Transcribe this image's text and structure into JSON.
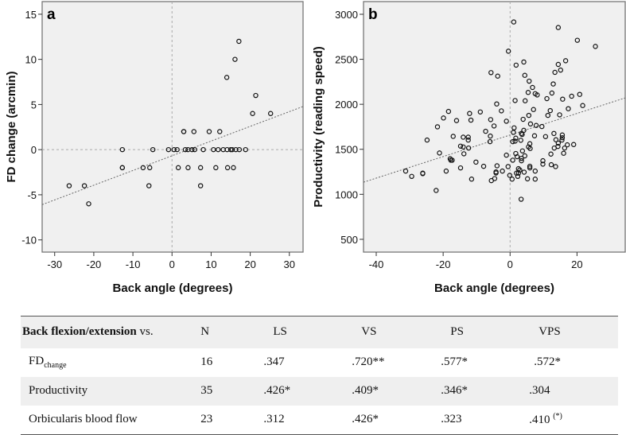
{
  "chart_data": [
    {
      "type": "scatter",
      "panel_label": "a",
      "xlabel": "Back angle (degrees)",
      "ylabel": "FD change (arcmin)",
      "xlim": [
        -33.2,
        33.5
      ],
      "ylim": [
        -11.35,
        16.4
      ],
      "xticks": [
        -30,
        -20,
        -10,
        0,
        10,
        20,
        30
      ],
      "yticks": [
        15,
        10,
        5,
        0,
        -5,
        -10
      ],
      "reference_lines": {
        "x": 0,
        "y": 0
      },
      "fit_line": {
        "slope": 0.163,
        "intercept": -0.68
      },
      "grid": false,
      "points": [
        [
          -26.3,
          -4
        ],
        [
          -22.4,
          -4
        ],
        [
          -21.3,
          -6
        ],
        [
          -12.7,
          0
        ],
        [
          -12.7,
          -2
        ],
        [
          -12.7,
          -2
        ],
        [
          -7.4,
          -2
        ],
        [
          -5.7,
          -2
        ],
        [
          -5.9,
          -4
        ],
        [
          -4.9,
          0
        ],
        [
          -0.9,
          0
        ],
        [
          0.5,
          0
        ],
        [
          1.3,
          0
        ],
        [
          1.6,
          -2
        ],
        [
          3.0,
          2
        ],
        [
          3.0,
          2
        ],
        [
          3.4,
          0
        ],
        [
          4.1,
          0
        ],
        [
          4.1,
          -2
        ],
        [
          5.1,
          0
        ],
        [
          5.6,
          2
        ],
        [
          5.8,
          0
        ],
        [
          7.3,
          -2
        ],
        [
          7.3,
          -4
        ],
        [
          8.0,
          0
        ],
        [
          9.5,
          2
        ],
        [
          10.6,
          0
        ],
        [
          11.2,
          -2
        ],
        [
          11.8,
          0
        ],
        [
          12.2,
          2
        ],
        [
          13.1,
          0
        ],
        [
          14.1,
          0
        ],
        [
          14.2,
          -2
        ],
        [
          14.0,
          8
        ],
        [
          15.0,
          0
        ],
        [
          15.4,
          0
        ],
        [
          15.7,
          -2
        ],
        [
          16.1,
          10
        ],
        [
          16.3,
          0
        ],
        [
          17.2,
          0
        ],
        [
          17.1,
          12
        ],
        [
          18.8,
          0
        ],
        [
          20.6,
          4
        ],
        [
          21.4,
          6
        ],
        [
          25.2,
          4
        ]
      ]
    },
    {
      "type": "scatter",
      "panel_label": "b",
      "xlabel": "Back angle (degrees)",
      "ylabel": "Productivity (reading speed)",
      "xlim": [
        -43.8,
        34.4
      ],
      "ylim": [
        358,
        3141
      ],
      "xticks": [
        -40,
        -20,
        0,
        20
      ],
      "yticks": [
        3000,
        2500,
        2000,
        1500,
        1000,
        500
      ],
      "reference_lines": {
        "x": 0
      },
      "fit_line": {
        "slope": 11.98,
        "intercept": 1659
      },
      "grid": false,
      "points": [
        [
          -31.2,
          1258
        ],
        [
          -29.4,
          1199
        ],
        [
          -26.1,
          1235
        ],
        [
          -26.1,
          1230
        ],
        [
          -24.8,
          1603
        ],
        [
          -22.1,
          1043
        ],
        [
          -21.7,
          1750
        ],
        [
          -21.1,
          1459
        ],
        [
          -19.9,
          1848
        ],
        [
          -19.1,
          1258
        ],
        [
          -18.4,
          1921
        ],
        [
          -17.9,
          1395
        ],
        [
          -17.7,
          1379
        ],
        [
          -17.3,
          1379
        ],
        [
          -17.0,
          1644
        ],
        [
          -16.0,
          1819
        ],
        [
          -14.8,
          1293
        ],
        [
          -14.8,
          1535
        ],
        [
          -14.0,
          1635
        ],
        [
          -14.0,
          1526
        ],
        [
          -13.8,
          1450
        ],
        [
          -12.5,
          1635
        ],
        [
          -12.5,
          1603
        ],
        [
          -12.4,
          1514
        ],
        [
          -12.1,
          1898
        ],
        [
          -11.7,
          1824
        ],
        [
          -11.5,
          1169
        ],
        [
          -10.2,
          1358
        ],
        [
          -8.9,
          1915
        ],
        [
          -7.9,
          1311
        ],
        [
          -7.3,
          1700
        ],
        [
          -6.0,
          1585
        ],
        [
          -5.9,
          1647
        ],
        [
          -5.8,
          1830
        ],
        [
          -5.7,
          2352
        ],
        [
          -5.6,
          1152
        ],
        [
          -4.8,
          1759
        ],
        [
          -4.6,
          1175
        ],
        [
          -4.2,
          1249
        ],
        [
          -4.2,
          1237
        ],
        [
          -3.9,
          1317
        ],
        [
          -3.7,
          2313
        ],
        [
          -4.0,
          2004
        ],
        [
          -2.6,
          1927
        ],
        [
          -2.3,
          1258
        ],
        [
          -1.1,
          1812
        ],
        [
          -1.1,
          1435
        ],
        [
          -0.6,
          1308
        ],
        [
          -0.5,
          2590
        ],
        [
          -0.1,
          1211
        ],
        [
          0.6,
          1169
        ],
        [
          0.8,
          1379
        ],
        [
          0.8,
          1585
        ],
        [
          1.0,
          1688
        ],
        [
          1.1,
          2915
        ],
        [
          1.2,
          1738
        ],
        [
          1.5,
          1591
        ],
        [
          1.5,
          2042
        ],
        [
          1.7,
          1624
        ],
        [
          1.7,
          1453
        ],
        [
          1.8,
          2435
        ],
        [
          1.9,
          1235
        ],
        [
          2.1,
          1418
        ],
        [
          2.3,
          1199
        ],
        [
          2.5,
          1285
        ],
        [
          2.5,
          1235
        ],
        [
          2.9,
          1270
        ],
        [
          3.2,
          1600
        ],
        [
          3.4,
          1399
        ],
        [
          3.4,
          1373
        ],
        [
          3.4,
          1676
        ],
        [
          3.6,
          1665
        ],
        [
          3.3,
          945
        ],
        [
          3.7,
          1482
        ],
        [
          3.9,
          1833
        ],
        [
          4.1,
          2470
        ],
        [
          4.1,
          1711
        ],
        [
          4.2,
          1246
        ],
        [
          4.4,
          1427
        ],
        [
          4.4,
          2322
        ],
        [
          4.5,
          2039
        ],
        [
          5.2,
          1172
        ],
        [
          5.4,
          2132
        ],
        [
          5.5,
          1526
        ],
        [
          5.6,
          1877
        ],
        [
          5.7,
          2257
        ],
        [
          5.9,
          1562
        ],
        [
          5.9,
          1311
        ],
        [
          5.9,
          1293
        ],
        [
          6.0,
          1509
        ],
        [
          6.1,
          1782
        ],
        [
          6.7,
          2187
        ],
        [
          7.0,
          1942
        ],
        [
          7.3,
          1650
        ],
        [
          7.5,
          2118
        ],
        [
          7.5,
          1169
        ],
        [
          7.5,
          1258
        ],
        [
          7.8,
          1765
        ],
        [
          8.1,
          2104
        ],
        [
          9.5,
          1753
        ],
        [
          9.8,
          1373
        ],
        [
          9.8,
          1335
        ],
        [
          10.6,
          1641
        ],
        [
          11.0,
          2063
        ],
        [
          11.3,
          1877
        ],
        [
          12.0,
          1930
        ],
        [
          12.2,
          1447
        ],
        [
          12.3,
          1329
        ],
        [
          12.5,
          2125
        ],
        [
          12.9,
          2226
        ],
        [
          13.1,
          1676
        ],
        [
          13.2,
          1514
        ],
        [
          13.4,
          2355
        ],
        [
          13.6,
          1308
        ],
        [
          13.7,
          1606
        ],
        [
          14.3,
          1532
        ],
        [
          14.4,
          1568
        ],
        [
          14.4,
          2853
        ],
        [
          14.4,
          2443
        ],
        [
          14.8,
          1883
        ],
        [
          15.1,
          2380
        ],
        [
          15.6,
          1659
        ],
        [
          15.6,
          1629
        ],
        [
          15.5,
          1603
        ],
        [
          15.7,
          2057
        ],
        [
          16.0,
          1456
        ],
        [
          16.3,
          1514
        ],
        [
          16.6,
          2484
        ],
        [
          17.1,
          1550
        ],
        [
          17.4,
          1951
        ],
        [
          18.4,
          2090
        ],
        [
          19.0,
          1553
        ],
        [
          20.1,
          2711
        ],
        [
          20.8,
          2110
        ],
        [
          21.7,
          1986
        ],
        [
          25.5,
          2643
        ]
      ]
    }
  ],
  "table": {
    "header": {
      "label_bold": "Back flexion/extension",
      "label_rest": " vs.",
      "columns": [
        "N",
        "LS",
        "VS",
        "PS",
        "VPS"
      ]
    },
    "rows": [
      {
        "label": "FD",
        "label_sub": "change",
        "N": "16",
        "LS": ".347",
        "VS": ".720**",
        "PS": ".577*",
        "VPS": ".572*",
        "VPS_sup": ""
      },
      {
        "label": "Productivity",
        "label_sub": "",
        "N": "35",
        "LS": ".426*",
        "VS": ".409*",
        "PS": ".346*",
        "VPS": ".304",
        "VPS_sup": ""
      },
      {
        "label": "Orbicularis blood flow",
        "label_sub": "",
        "N": "23",
        "LS": ".312",
        "VS": ".426*",
        "PS": ".323",
        "VPS": ".410",
        "VPS_sup": "(*)"
      }
    ]
  }
}
